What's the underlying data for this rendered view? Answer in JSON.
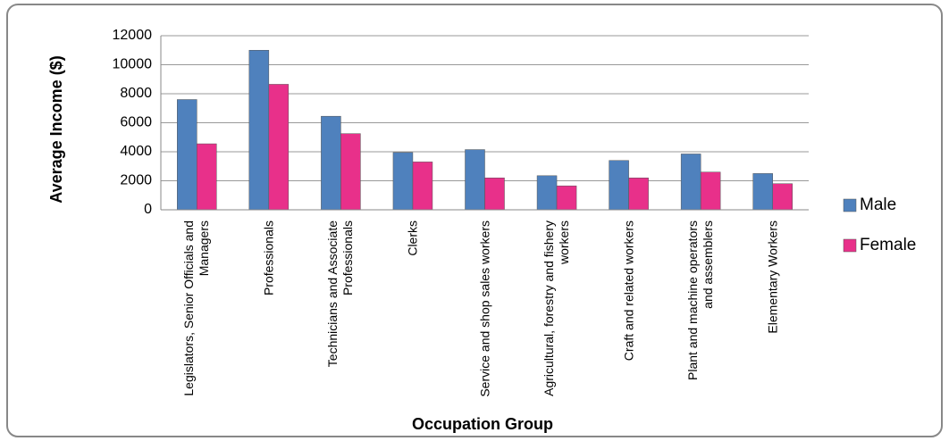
{
  "chart_data": {
    "type": "bar",
    "categories": [
      "Legislators, Senior Officials and Managers",
      "Professionals",
      "Technicians and Associate Professionals",
      "Clerks",
      "Service and shop sales workers",
      "Agricultural,  forestry and fishery workers",
      "Craft and related workers",
      "Plant and machine operators and assemblers",
      "Elementary Workers"
    ],
    "series": [
      {
        "name": "Male",
        "color": "#4f81bd",
        "values": [
          7600,
          11000,
          6450,
          3950,
          4150,
          2350,
          3400,
          3850,
          2500
        ]
      },
      {
        "name": "Female",
        "color": "#e8308a",
        "values": [
          4550,
          8650,
          5250,
          3300,
          2200,
          1650,
          2200,
          2600,
          1800
        ]
      }
    ],
    "x_label": "Occupation Group",
    "y_label": "Average Income ($)",
    "ylim": [
      0,
      12000
    ],
    "yticks": [
      0,
      2000,
      4000,
      6000,
      8000,
      10000,
      12000
    ],
    "grid": true,
    "legend": "right"
  }
}
